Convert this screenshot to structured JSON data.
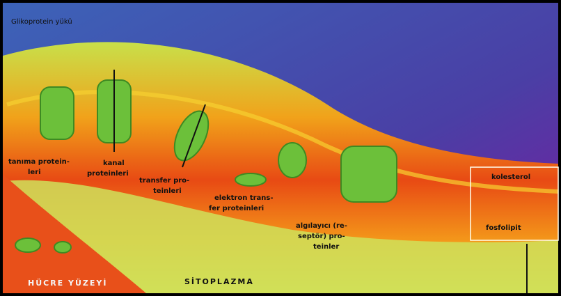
{
  "labels": {
    "top": "Glikoprotein yükü",
    "recognition": [
      "tanıma protein-",
      "leri"
    ],
    "channel": [
      "kanal",
      "proteinleri"
    ],
    "transfer": [
      "transfer pro-",
      "teinleri"
    ],
    "electron": [
      "elektron trans-",
      "fer proteinleri"
    ],
    "receptor": [
      "algılayıcı (re-",
      "septör) pro-",
      "teinler"
    ],
    "cholesterol": "kolesterol",
    "phospholipid": "fosfolipit",
    "surface": "HÜCRE YÜZEYİ",
    "cytoplasm": "SİTOPLAZMA"
  }
}
